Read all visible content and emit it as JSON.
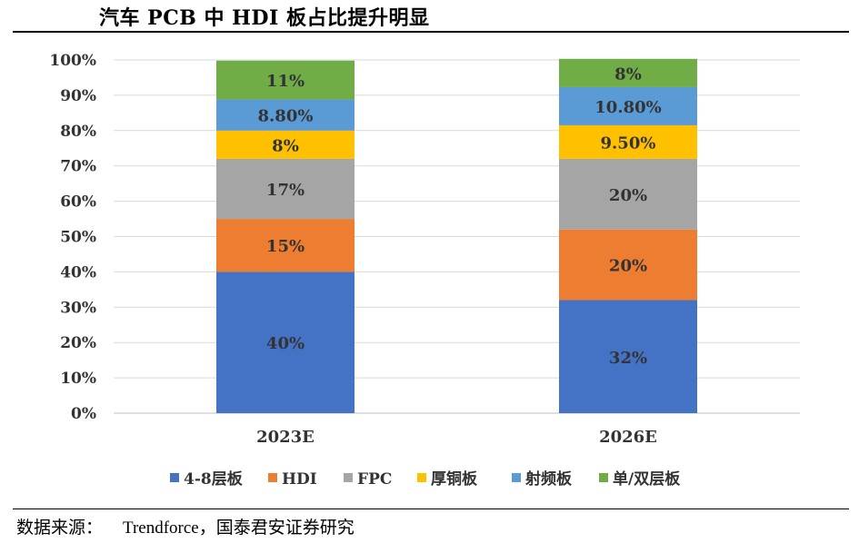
{
  "title": "汽车 PCB 中 HDI 板占比提升明显",
  "source": {
    "label": "数据来源：",
    "text": "Trendforce，国泰君安证券研究"
  },
  "chart_data": {
    "type": "bar",
    "stacked": true,
    "categories": [
      "2023E",
      "2026E"
    ],
    "series": [
      {
        "name": "4-8层板",
        "color": "#4472C4",
        "values": [
          40,
          32
        ],
        "labels": [
          "40%",
          "32%"
        ]
      },
      {
        "name": "HDI",
        "color": "#ED7D31",
        "values": [
          15,
          20
        ],
        "labels": [
          "15%",
          "20%"
        ]
      },
      {
        "name": "FPC",
        "color": "#A5A5A5",
        "values": [
          17,
          20
        ],
        "labels": [
          "17%",
          "20%"
        ]
      },
      {
        "name": "厚铜板",
        "color": "#FFC000",
        "values": [
          8,
          9.5
        ],
        "labels": [
          "8%",
          "9.50%"
        ]
      },
      {
        "name": "射频板",
        "color": "#5B9BD5",
        "values": [
          8.8,
          10.8
        ],
        "labels": [
          "8.80%",
          "10.80%"
        ]
      },
      {
        "name": "单/双层板",
        "color": "#70AD47",
        "values": [
          11,
          8
        ],
        "labels": [
          "11%",
          "8%"
        ]
      }
    ],
    "yticks": [
      "0%",
      "10%",
      "20%",
      "30%",
      "40%",
      "50%",
      "60%",
      "70%",
      "80%",
      "90%",
      "100%"
    ],
    "ylim": [
      0,
      100
    ],
    "grid": true,
    "legend_position": "bottom"
  }
}
